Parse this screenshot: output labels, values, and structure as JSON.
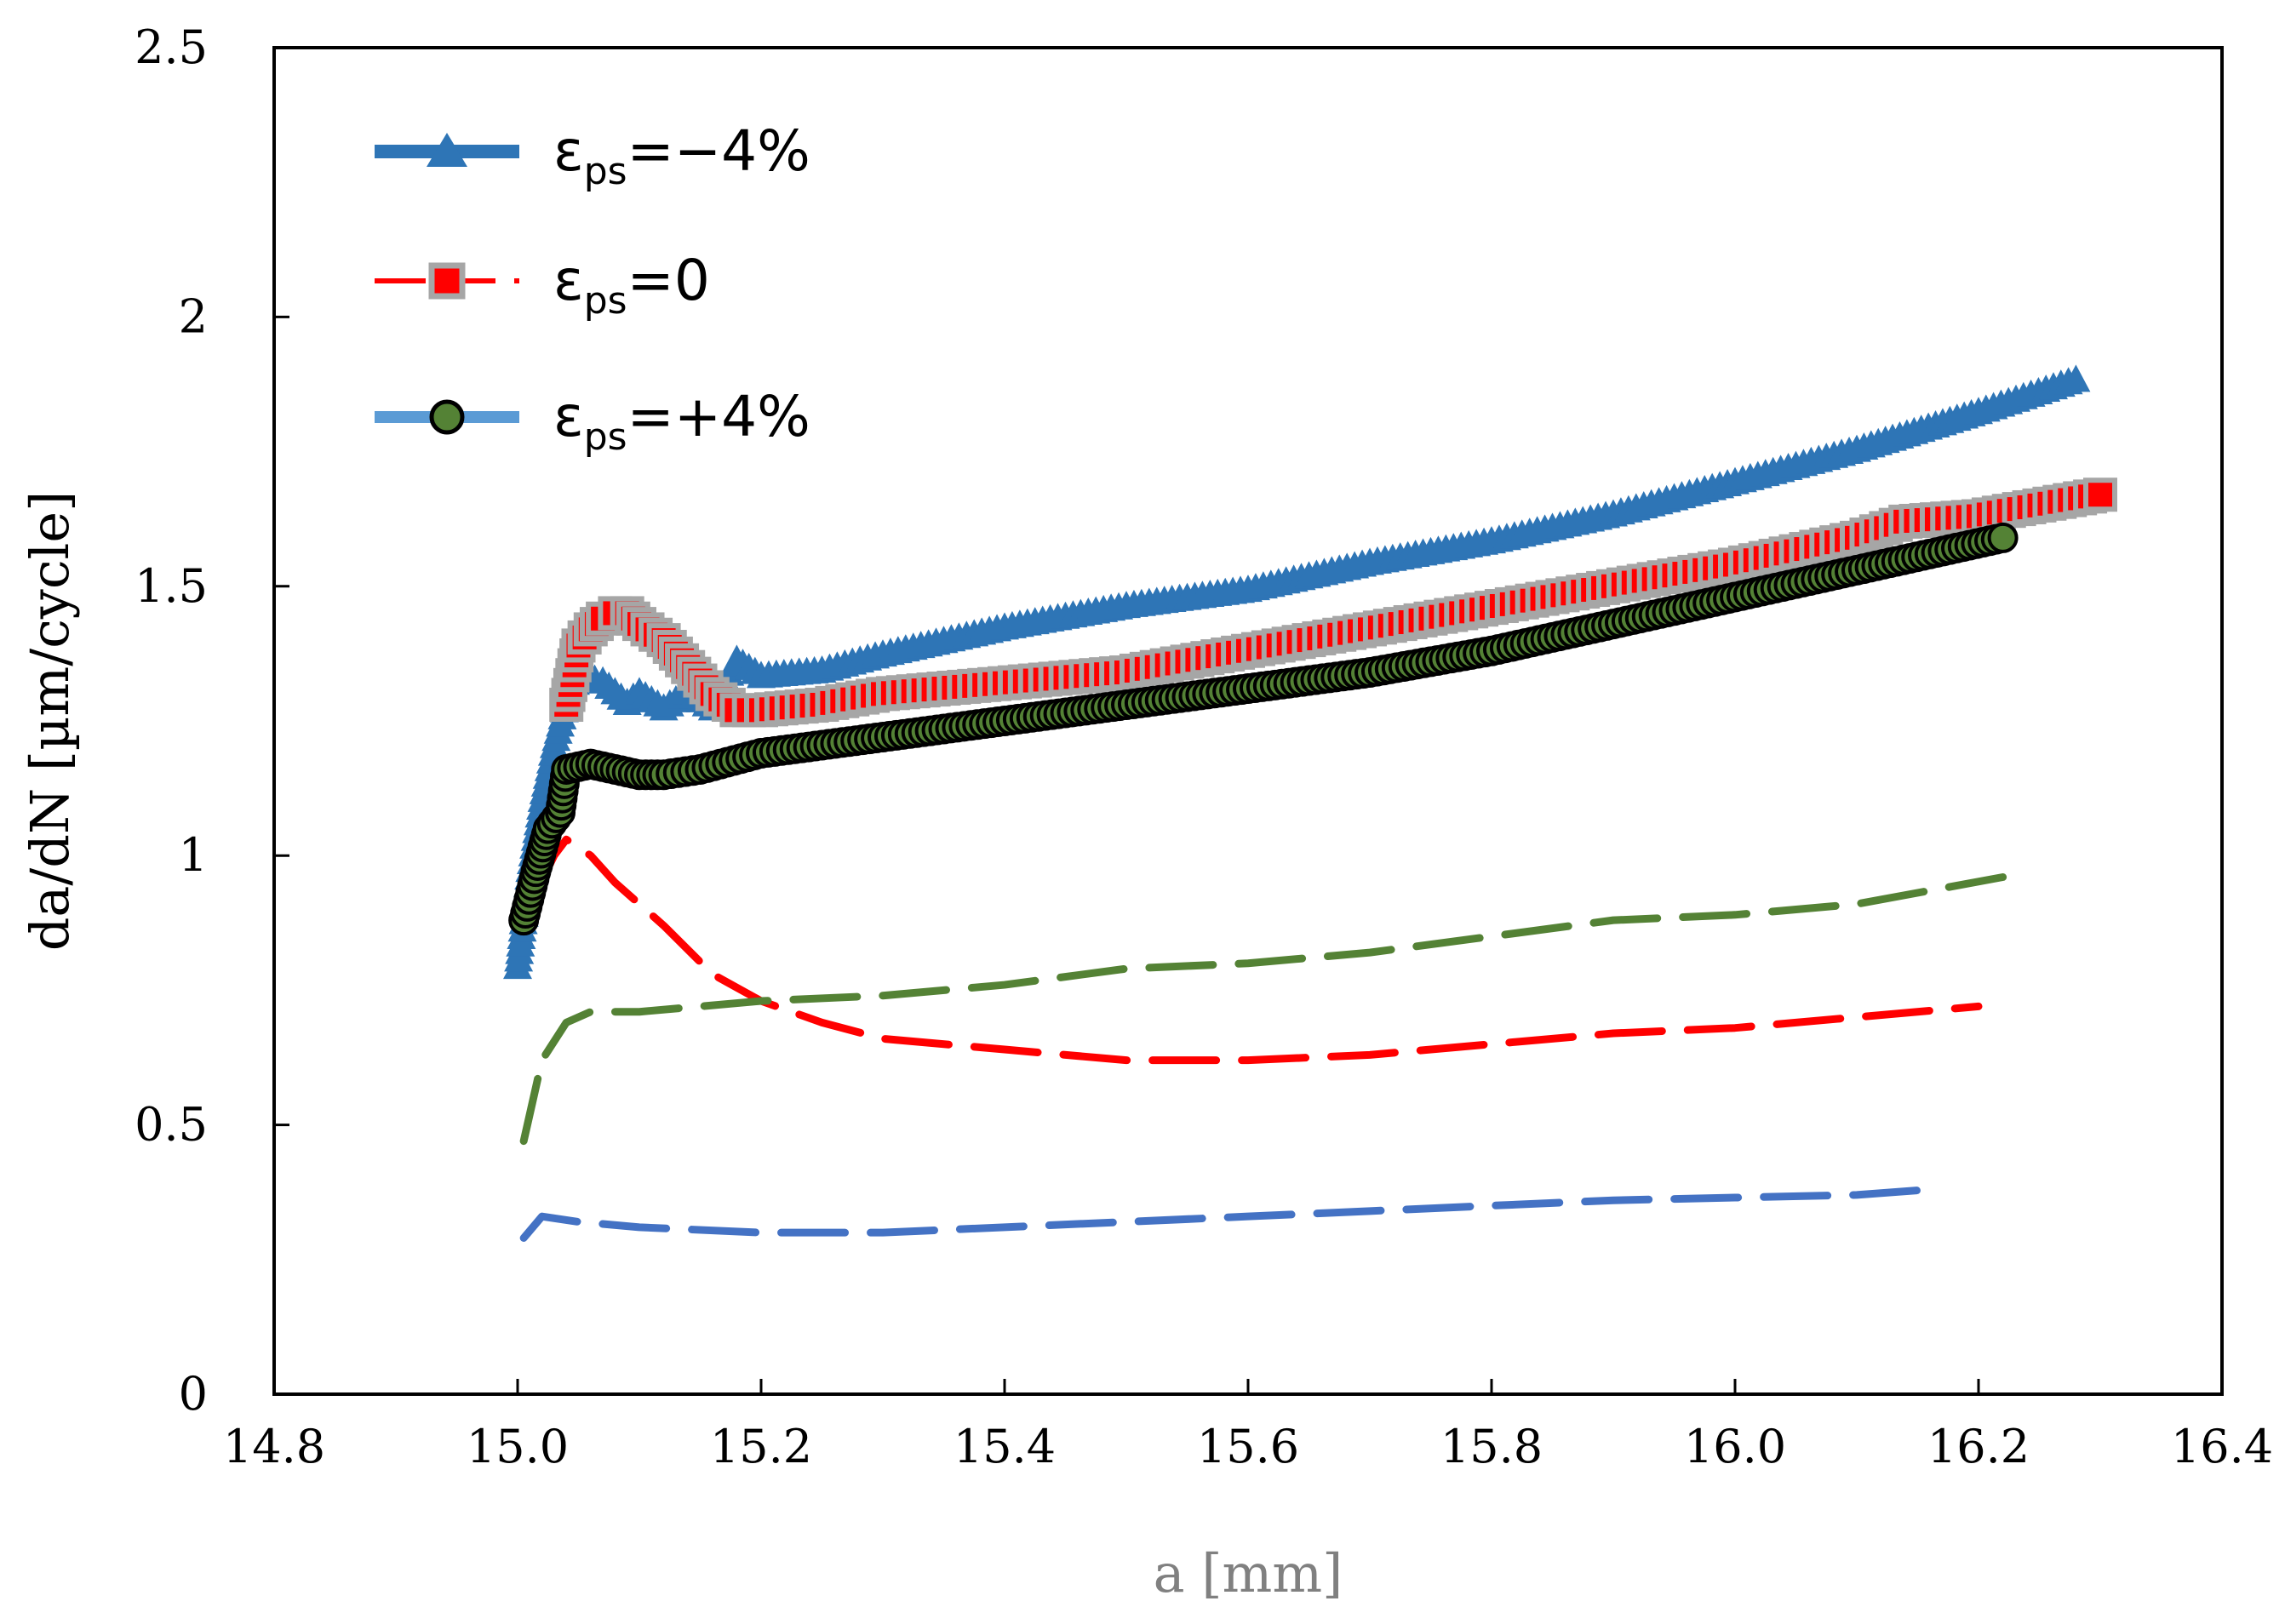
{
  "chart_data": {
    "type": "line",
    "title": "",
    "xlabel": "a [mm]",
    "ylabel": "da/dN [µm/cycle]",
    "xlim": [
      14.8,
      16.4
    ],
    "ylim": [
      0,
      2.5
    ],
    "x_ticks": [
      14.8,
      15.0,
      15.2,
      15.4,
      15.6,
      15.8,
      16.0,
      16.2,
      16.4
    ],
    "x_tick_labels": [
      "14.8",
      "15.0",
      "15.2",
      "15.4",
      "15.6",
      "15.8",
      "16.0",
      "16.2",
      "16.4"
    ],
    "y_ticks": [
      0,
      0.5,
      1,
      1.5,
      2,
      2.5
    ],
    "y_tick_labels": [
      "0",
      "0.5",
      "1",
      "1.5",
      "2",
      "2.5"
    ],
    "legend": {
      "position": "top-left",
      "entries": [
        {
          "symbol": "ε",
          "subscript": "ps",
          "suffix": "=−4%"
        },
        {
          "symbol": "ε",
          "subscript": "ps",
          "suffix": "=0"
        },
        {
          "symbol": "ε",
          "subscript": "ps",
          "suffix": "=+4%"
        }
      ]
    },
    "series": [
      {
        "name": "εps=−4%",
        "style": "marker",
        "marker": "triangle",
        "color": "#2E75B6",
        "marker_color": "#2E75B6",
        "x": [
          15.0,
          15.01,
          15.02,
          15.03,
          15.04,
          15.05,
          15.07,
          15.09,
          15.1,
          15.12,
          15.14,
          15.16,
          15.18,
          15.2,
          15.25,
          15.3,
          15.4,
          15.5,
          15.6,
          15.7,
          15.8,
          15.9,
          16.0,
          16.1,
          16.2,
          16.28
        ],
        "y": [
          0.79,
          0.97,
          1.1,
          1.2,
          1.28,
          1.33,
          1.32,
          1.28,
          1.3,
          1.27,
          1.3,
          1.27,
          1.36,
          1.33,
          1.34,
          1.37,
          1.42,
          1.46,
          1.49,
          1.54,
          1.58,
          1.63,
          1.69,
          1.75,
          1.82,
          1.88
        ]
      },
      {
        "name": "εps=0",
        "style": "marker",
        "marker": "square",
        "color": "#FF0000",
        "marker_color": "#FF0000",
        "marker_edge": "#A6A6A6",
        "x": [
          15.04,
          15.05,
          15.06,
          15.07,
          15.08,
          15.09,
          15.1,
          15.12,
          15.14,
          15.16,
          15.18,
          15.2,
          15.25,
          15.3,
          15.4,
          15.5,
          15.6,
          15.7,
          15.8,
          15.9,
          16.0,
          16.1,
          16.14,
          16.2,
          16.3
        ],
        "y": [
          1.28,
          1.39,
          1.42,
          1.44,
          1.45,
          1.45,
          1.43,
          1.4,
          1.35,
          1.3,
          1.27,
          1.27,
          1.28,
          1.3,
          1.32,
          1.34,
          1.38,
          1.42,
          1.46,
          1.5,
          1.54,
          1.59,
          1.62,
          1.63,
          1.67
        ]
      },
      {
        "name": "εps=+4%",
        "style": "marker",
        "marker": "circle",
        "color": "#5B9BD5",
        "marker_color": "#548235",
        "marker_edge": "#000000",
        "x": [
          15.005,
          15.015,
          15.025,
          15.035,
          15.04,
          15.06,
          15.08,
          15.1,
          15.12,
          15.15,
          15.2,
          15.3,
          15.4,
          15.5,
          15.6,
          15.7,
          15.8,
          15.9,
          16.0,
          16.1,
          16.22
        ],
        "y": [
          0.88,
          0.97,
          1.05,
          1.08,
          1.16,
          1.17,
          1.16,
          1.15,
          1.15,
          1.16,
          1.19,
          1.22,
          1.25,
          1.28,
          1.31,
          1.34,
          1.38,
          1.43,
          1.48,
          1.53,
          1.59
        ]
      },
      {
        "name": "dashed blue",
        "style": "dashed",
        "color": "#4472C4",
        "x": [
          15.005,
          15.02,
          15.05,
          15.1,
          15.2,
          15.3,
          15.4,
          15.5,
          15.6,
          15.7,
          15.8,
          15.9,
          16.0,
          16.1,
          16.16
        ],
        "y": [
          0.29,
          0.33,
          0.32,
          0.31,
          0.3,
          0.3,
          0.31,
          0.32,
          0.33,
          0.34,
          0.35,
          0.36,
          0.365,
          0.37,
          0.38
        ]
      },
      {
        "name": "dashed red",
        "style": "dashed",
        "color": "#FF0000",
        "x": [
          15.015,
          15.03,
          15.04,
          15.06,
          15.08,
          15.12,
          15.16,
          15.2,
          15.25,
          15.3,
          15.4,
          15.5,
          15.6,
          15.7,
          15.8,
          15.9,
          16.0,
          16.1,
          16.2
        ],
        "y": [
          0.93,
          1.0,
          1.03,
          1.0,
          0.95,
          0.87,
          0.78,
          0.73,
          0.69,
          0.66,
          0.64,
          0.62,
          0.62,
          0.63,
          0.65,
          0.67,
          0.68,
          0.7,
          0.72
        ]
      },
      {
        "name": "dashed green",
        "style": "dashed",
        "color": "#548235",
        "x": [
          15.005,
          15.02,
          15.04,
          15.06,
          15.1,
          15.15,
          15.2,
          15.3,
          15.4,
          15.5,
          15.6,
          15.7,
          15.8,
          15.9,
          16.0,
          16.1,
          16.22
        ],
        "y": [
          0.47,
          0.62,
          0.69,
          0.71,
          0.71,
          0.72,
          0.73,
          0.74,
          0.76,
          0.79,
          0.8,
          0.82,
          0.85,
          0.88,
          0.89,
          0.91,
          0.96
        ]
      }
    ]
  }
}
